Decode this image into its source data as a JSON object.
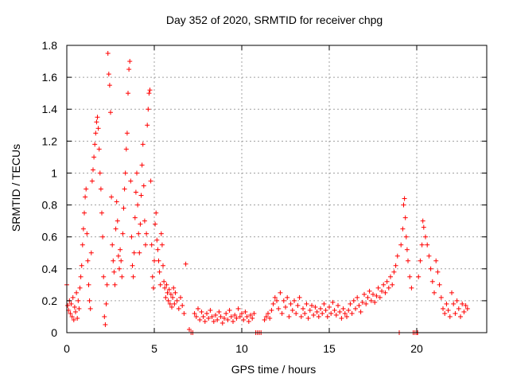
{
  "chart_data": {
    "type": "scatter",
    "title": "Day 352 of 2020, SRMTID for receiver chpg",
    "xlabel": "GPS time / hours",
    "ylabel": "SRMTID / TECUs",
    "xlim": [
      0,
      24
    ],
    "ylim": [
      0,
      1.8
    ],
    "x_ticks": [
      "0",
      "5",
      "10",
      "15",
      "20"
    ],
    "y_ticks": [
      "0",
      "0.2",
      "0.4",
      "0.6",
      "0.8",
      "1",
      "1.2",
      "1.4",
      "1.6",
      "1.8"
    ],
    "grid": true,
    "marker": "+",
    "color": "#ff0000",
    "series": [
      {
        "name": "SRMTID",
        "points": [
          [
            0.0,
            0.3
          ],
          [
            0.05,
            0.17
          ],
          [
            0.1,
            0.14
          ],
          [
            0.15,
            0.2
          ],
          [
            0.2,
            0.12
          ],
          [
            0.25,
            0.18
          ],
          [
            0.3,
            0.1
          ],
          [
            0.35,
            0.22
          ],
          [
            0.4,
            0.08
          ],
          [
            0.45,
            0.16
          ],
          [
            0.5,
            0.13
          ],
          [
            0.55,
            0.25
          ],
          [
            0.6,
            0.09
          ],
          [
            0.65,
            0.2
          ],
          [
            0.7,
            0.15
          ],
          [
            0.75,
            0.28
          ],
          [
            0.8,
            0.35
          ],
          [
            0.85,
            0.42
          ],
          [
            0.9,
            0.55
          ],
          [
            0.95,
            0.65
          ],
          [
            1.0,
            0.75
          ],
          [
            1.05,
            0.85
          ],
          [
            1.1,
            0.9
          ],
          [
            1.15,
            0.62
          ],
          [
            1.2,
            0.45
          ],
          [
            1.25,
            0.3
          ],
          [
            1.3,
            0.2
          ],
          [
            1.35,
            0.15
          ],
          [
            1.4,
            0.5
          ],
          [
            1.45,
            0.95
          ],
          [
            1.5,
            1.02
          ],
          [
            1.55,
            1.1
          ],
          [
            1.6,
            1.18
          ],
          [
            1.65,
            1.25
          ],
          [
            1.7,
            1.32
          ],
          [
            1.75,
            1.35
          ],
          [
            1.8,
            1.28
          ],
          [
            1.85,
            1.15
          ],
          [
            1.9,
            1.0
          ],
          [
            1.95,
            0.9
          ],
          [
            2.0,
            0.75
          ],
          [
            2.05,
            0.6
          ],
          [
            2.1,
            0.35
          ],
          [
            2.15,
            0.1
          ],
          [
            2.2,
            0.05
          ],
          [
            2.25,
            0.18
          ],
          [
            2.3,
            0.3
          ],
          [
            2.35,
            1.75
          ],
          [
            2.4,
            1.62
          ],
          [
            2.45,
            1.55
          ],
          [
            2.5,
            1.38
          ],
          [
            2.55,
            0.85
          ],
          [
            2.6,
            0.55
          ],
          [
            2.65,
            0.45
          ],
          [
            2.7,
            0.38
          ],
          [
            2.75,
            0.3
          ],
          [
            2.8,
            0.65
          ],
          [
            2.85,
            0.82
          ],
          [
            2.9,
            0.7
          ],
          [
            2.95,
            0.48
          ],
          [
            3.0,
            0.4
          ],
          [
            3.05,
            0.52
          ],
          [
            3.1,
            0.45
          ],
          [
            3.15,
            0.35
          ],
          [
            3.2,
            0.62
          ],
          [
            3.25,
            0.78
          ],
          [
            3.3,
            0.9
          ],
          [
            3.35,
            1.0
          ],
          [
            3.4,
            1.15
          ],
          [
            3.45,
            1.25
          ],
          [
            3.5,
            1.5
          ],
          [
            3.55,
            1.65
          ],
          [
            3.6,
            1.7
          ],
          [
            3.65,
            0.95
          ],
          [
            3.7,
            0.6
          ],
          [
            3.75,
            0.42
          ],
          [
            3.8,
            0.35
          ],
          [
            3.85,
            0.5
          ],
          [
            3.9,
            0.72
          ],
          [
            3.95,
            0.88
          ],
          [
            4.0,
            1.0
          ],
          [
            4.05,
            0.8
          ],
          [
            4.1,
            0.62
          ],
          [
            4.15,
            0.5
          ],
          [
            4.2,
            0.68
          ],
          [
            4.25,
            0.86
          ],
          [
            4.3,
            1.05
          ],
          [
            4.35,
            1.18
          ],
          [
            4.4,
            0.92
          ],
          [
            4.45,
            0.7
          ],
          [
            4.5,
            0.55
          ],
          [
            4.55,
            0.62
          ],
          [
            4.6,
            1.3
          ],
          [
            4.65,
            1.4
          ],
          [
            4.7,
            1.5
          ],
          [
            4.75,
            1.52
          ],
          [
            4.8,
            0.95
          ],
          [
            4.85,
            0.55
          ],
          [
            4.9,
            0.35
          ],
          [
            4.95,
            0.28
          ],
          [
            5.0,
            0.45
          ],
          [
            5.05,
            0.68
          ],
          [
            5.1,
            0.75
          ],
          [
            5.15,
            0.58
          ],
          [
            5.2,
            0.52
          ],
          [
            5.25,
            0.45
          ],
          [
            5.3,
            0.38
          ],
          [
            5.35,
            0.3
          ],
          [
            5.4,
            0.62
          ],
          [
            5.45,
            0.55
          ],
          [
            5.5,
            0.42
          ],
          [
            5.55,
            0.32
          ],
          [
            5.6,
            0.28
          ],
          [
            5.65,
            0.22
          ],
          [
            5.7,
            0.3
          ],
          [
            5.75,
            0.25
          ],
          [
            5.8,
            0.2
          ],
          [
            5.85,
            0.27
          ],
          [
            5.9,
            0.18
          ],
          [
            5.95,
            0.24
          ],
          [
            6.0,
            0.16
          ],
          [
            6.05,
            0.22
          ],
          [
            6.1,
            0.28
          ],
          [
            6.15,
            0.18
          ],
          [
            6.2,
            0.25
          ],
          [
            6.3,
            0.2
          ],
          [
            6.4,
            0.15
          ],
          [
            6.5,
            0.22
          ],
          [
            6.6,
            0.17
          ],
          [
            6.7,
            0.12
          ],
          [
            6.8,
            0.43
          ],
          [
            7.0,
            0.02
          ],
          [
            7.1,
            0.0
          ],
          [
            7.2,
            0.0
          ],
          [
            7.3,
            0.12
          ],
          [
            7.4,
            0.1
          ],
          [
            7.5,
            0.15
          ],
          [
            7.6,
            0.08
          ],
          [
            7.7,
            0.13
          ],
          [
            7.8,
            0.1
          ],
          [
            7.9,
            0.07
          ],
          [
            8.0,
            0.12
          ],
          [
            8.1,
            0.09
          ],
          [
            8.2,
            0.14
          ],
          [
            8.3,
            0.1
          ],
          [
            8.4,
            0.07
          ],
          [
            8.5,
            0.11
          ],
          [
            8.6,
            0.08
          ],
          [
            8.7,
            0.13
          ],
          [
            8.8,
            0.1
          ],
          [
            8.9,
            0.06
          ],
          [
            9.0,
            0.09
          ],
          [
            9.1,
            0.12
          ],
          [
            9.2,
            0.08
          ],
          [
            9.3,
            0.14
          ],
          [
            9.4,
            0.1
          ],
          [
            9.5,
            0.07
          ],
          [
            9.6,
            0.11
          ],
          [
            9.7,
            0.09
          ],
          [
            9.8,
            0.15
          ],
          [
            9.9,
            0.1
          ],
          [
            10.0,
            0.12
          ],
          [
            10.1,
            0.08
          ],
          [
            10.2,
            0.13
          ],
          [
            10.3,
            0.1
          ],
          [
            10.4,
            0.07
          ],
          [
            10.5,
            0.11
          ],
          [
            10.6,
            0.09
          ],
          [
            10.7,
            0.12
          ],
          [
            10.8,
            0.0
          ],
          [
            10.9,
            0.0
          ],
          [
            11.0,
            0.0
          ],
          [
            11.1,
            0.0
          ],
          [
            11.3,
            0.08
          ],
          [
            11.4,
            0.1
          ],
          [
            11.5,
            0.12
          ],
          [
            11.6,
            0.09
          ],
          [
            11.7,
            0.14
          ],
          [
            11.8,
            0.18
          ],
          [
            11.9,
            0.22
          ],
          [
            12.0,
            0.2
          ],
          [
            12.1,
            0.15
          ],
          [
            12.2,
            0.25
          ],
          [
            12.3,
            0.12
          ],
          [
            12.4,
            0.2
          ],
          [
            12.5,
            0.16
          ],
          [
            12.6,
            0.22
          ],
          [
            12.7,
            0.1
          ],
          [
            12.8,
            0.18
          ],
          [
            12.9,
            0.14
          ],
          [
            13.0,
            0.2
          ],
          [
            13.1,
            0.12
          ],
          [
            13.2,
            0.17
          ],
          [
            13.3,
            0.22
          ],
          [
            13.4,
            0.1
          ],
          [
            13.5,
            0.15
          ],
          [
            13.6,
            0.12
          ],
          [
            13.7,
            0.18
          ],
          [
            13.8,
            0.09
          ],
          [
            13.9,
            0.14
          ],
          [
            14.0,
            0.17
          ],
          [
            14.1,
            0.11
          ],
          [
            14.2,
            0.16
          ],
          [
            14.3,
            0.13
          ],
          [
            14.4,
            0.1
          ],
          [
            14.5,
            0.15
          ],
          [
            14.6,
            0.12
          ],
          [
            14.7,
            0.18
          ],
          [
            14.8,
            0.14
          ],
          [
            14.9,
            0.1
          ],
          [
            15.0,
            0.16
          ],
          [
            15.1,
            0.12
          ],
          [
            15.2,
            0.19
          ],
          [
            15.3,
            0.14
          ],
          [
            15.4,
            0.11
          ],
          [
            15.5,
            0.17
          ],
          [
            15.6,
            0.13
          ],
          [
            15.7,
            0.09
          ],
          [
            15.8,
            0.15
          ],
          [
            15.9,
            0.12
          ],
          [
            16.0,
            0.1
          ],
          [
            16.1,
            0.14
          ],
          [
            16.2,
            0.18
          ],
          [
            16.3,
            0.12
          ],
          [
            16.4,
            0.2
          ],
          [
            16.5,
            0.15
          ],
          [
            16.6,
            0.22
          ],
          [
            16.7,
            0.17
          ],
          [
            16.8,
            0.13
          ],
          [
            16.9,
            0.19
          ],
          [
            17.0,
            0.24
          ],
          [
            17.1,
            0.18
          ],
          [
            17.2,
            0.22
          ],
          [
            17.3,
            0.26
          ],
          [
            17.4,
            0.2
          ],
          [
            17.5,
            0.24
          ],
          [
            17.6,
            0.19
          ],
          [
            17.7,
            0.23
          ],
          [
            17.8,
            0.28
          ],
          [
            17.9,
            0.22
          ],
          [
            18.0,
            0.26
          ],
          [
            18.1,
            0.3
          ],
          [
            18.2,
            0.25
          ],
          [
            18.3,
            0.32
          ],
          [
            18.4,
            0.28
          ],
          [
            18.5,
            0.35
          ],
          [
            18.6,
            0.3
          ],
          [
            18.7,
            0.38
          ],
          [
            18.8,
            0.42
          ],
          [
            18.9,
            0.48
          ],
          [
            19.0,
            0.0
          ],
          [
            19.1,
            0.55
          ],
          [
            19.2,
            0.65
          ],
          [
            19.25,
            0.8
          ],
          [
            19.3,
            0.84
          ],
          [
            19.35,
            0.72
          ],
          [
            19.4,
            0.6
          ],
          [
            19.45,
            0.52
          ],
          [
            19.5,
            0.45
          ],
          [
            19.6,
            0.35
          ],
          [
            19.7,
            0.28
          ],
          [
            19.8,
            0.0
          ],
          [
            19.9,
            0.0
          ],
          [
            20.0,
            0.0
          ],
          [
            20.05,
            0.0
          ],
          [
            20.1,
            0.35
          ],
          [
            20.2,
            0.45
          ],
          [
            20.3,
            0.55
          ],
          [
            20.35,
            0.7
          ],
          [
            20.4,
            0.66
          ],
          [
            20.5,
            0.6
          ],
          [
            20.6,
            0.55
          ],
          [
            20.7,
            0.48
          ],
          [
            20.8,
            0.4
          ],
          [
            20.9,
            0.32
          ],
          [
            21.0,
            0.25
          ],
          [
            21.1,
            0.45
          ],
          [
            21.2,
            0.38
          ],
          [
            21.3,
            0.3
          ],
          [
            21.4,
            0.22
          ],
          [
            21.5,
            0.15
          ],
          [
            21.6,
            0.12
          ],
          [
            21.7,
            0.18
          ],
          [
            21.8,
            0.14
          ],
          [
            21.9,
            0.1
          ],
          [
            22.0,
            0.25
          ],
          [
            22.1,
            0.18
          ],
          [
            22.2,
            0.12
          ],
          [
            22.3,
            0.2
          ],
          [
            22.4,
            0.15
          ],
          [
            22.5,
            0.1
          ],
          [
            22.6,
            0.18
          ],
          [
            22.7,
            0.13
          ],
          [
            22.8,
            0.17
          ],
          [
            22.9,
            0.15
          ]
        ]
      }
    ]
  }
}
